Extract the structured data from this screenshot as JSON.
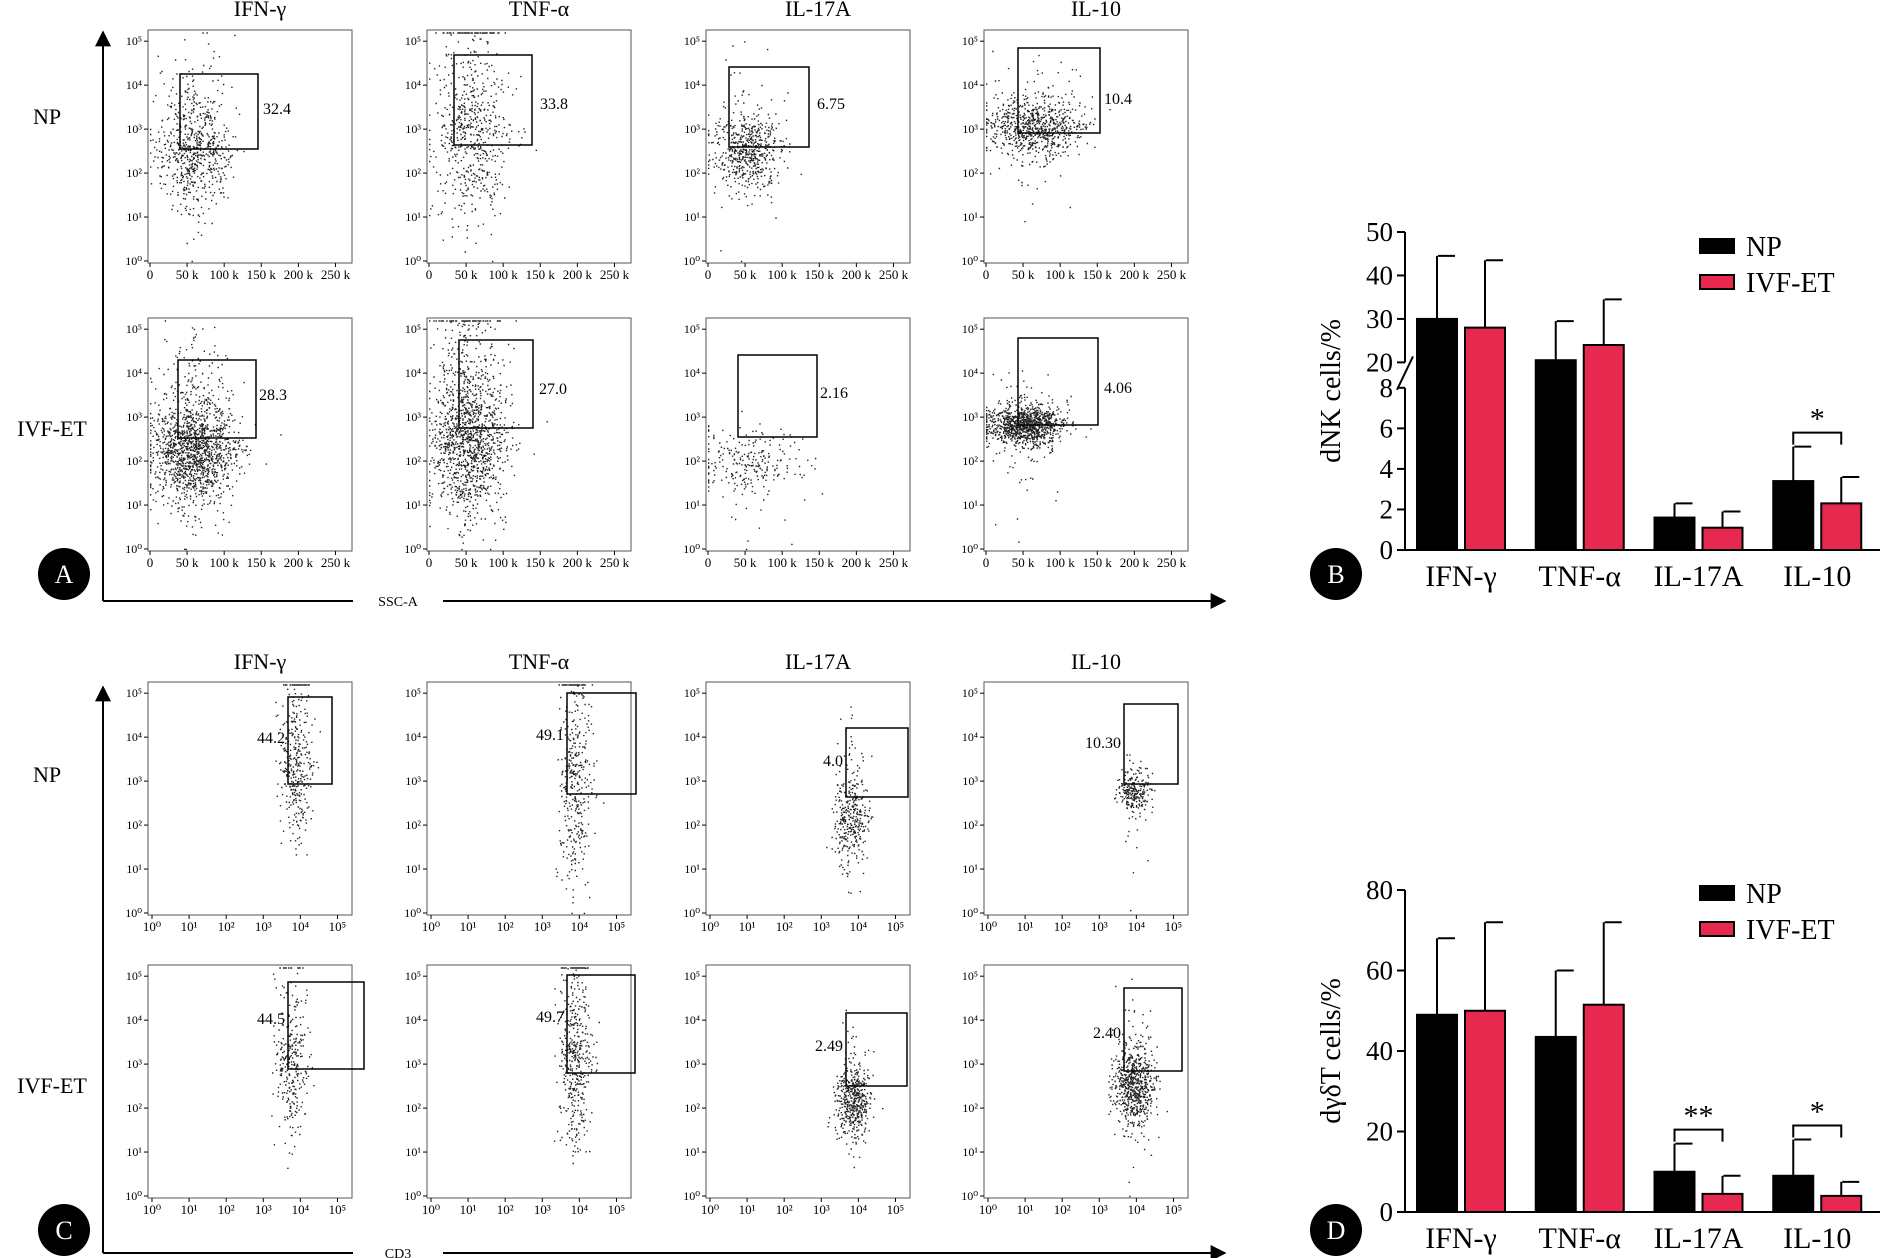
{
  "colors": {
    "np": "#000000",
    "ivf": "#e8294f",
    "axis": "#000000",
    "dots": "#222222"
  },
  "panel_letters": [
    "A",
    "B",
    "C",
    "D"
  ],
  "flow_panels": [
    {
      "letter": "A",
      "column_titles": [
        "IFN-γ",
        "TNF-α",
        "IL-17A",
        "IL-10"
      ],
      "row_labels": [
        "NP",
        "IVF-ET"
      ],
      "x_axis_label": "SSC-A",
      "x_ticks": [
        "0",
        "50 k",
        "100 k",
        "150 k",
        "200 k",
        "250 k"
      ],
      "y_ticks": [
        "10⁰",
        "10¹",
        "10²",
        "10³",
        "10⁴",
        "10⁵"
      ],
      "gate_values": [
        [
          "32.4",
          "33.8",
          "6.75",
          "10.4"
        ],
        [
          "28.3",
          "27.0",
          "2.16",
          "4.06"
        ]
      ]
    },
    {
      "letter": "C",
      "column_titles": [
        "IFN-γ",
        "TNF-α",
        "IL-17A",
        "IL-10"
      ],
      "row_labels": [
        "NP",
        "IVF-ET"
      ],
      "x_axis_label": "CD3",
      "x_ticks": [
        "10⁰",
        "10¹",
        "10²",
        "10³",
        "10⁴",
        "10⁵"
      ],
      "y_ticks": [
        "10⁰",
        "10¹",
        "10²",
        "10³",
        "10⁴",
        "10⁵"
      ],
      "gate_values": [
        [
          "44.2",
          "49.1",
          "4.0",
          "10.30"
        ],
        [
          "44.5",
          "49.7",
          "2.49",
          "2.40"
        ]
      ]
    }
  ],
  "chart_data": [
    {
      "type": "bar",
      "panel": "B",
      "ylabel": "dNK cells/%",
      "categories": [
        "IFN-γ",
        "TNF-α",
        "IL-17A",
        "IL-10"
      ],
      "axis_break": {
        "lower": [
          0,
          8
        ],
        "upper": [
          20,
          50
        ]
      },
      "y_ticks": [
        0,
        2,
        4,
        6,
        8,
        20,
        30,
        40,
        50
      ],
      "legend_position": "top-right",
      "series": [
        {
          "name": "NP",
          "values": [
            30.0,
            20.5,
            1.6,
            3.4
          ],
          "errors": [
            14.5,
            9.0,
            0.7,
            1.7
          ]
        },
        {
          "name": "IVF-ET",
          "values": [
            28.0,
            24.0,
            1.1,
            2.3
          ],
          "errors": [
            15.5,
            10.5,
            0.8,
            1.3
          ]
        }
      ],
      "significance": [
        {
          "category_index": 3,
          "label": "*"
        }
      ]
    },
    {
      "type": "bar",
      "panel": "D",
      "ylabel": "dγδT cells/%",
      "categories": [
        "IFN-γ",
        "TNF-α",
        "IL-17A",
        "IL-10"
      ],
      "ylim": [
        0,
        80
      ],
      "y_ticks": [
        0,
        20,
        40,
        60,
        80
      ],
      "legend_position": "top-right",
      "series": [
        {
          "name": "NP",
          "values": [
            49,
            43.5,
            10,
            9
          ],
          "errors": [
            19,
            16.5,
            7,
            9
          ]
        },
        {
          "name": "IVF-ET",
          "values": [
            50,
            51.5,
            4.5,
            4
          ],
          "errors": [
            22,
            20.5,
            4.5,
            3.5
          ]
        }
      ],
      "significance": [
        {
          "category_index": 2,
          "label": "**"
        },
        {
          "category_index": 3,
          "label": "*"
        }
      ]
    }
  ]
}
